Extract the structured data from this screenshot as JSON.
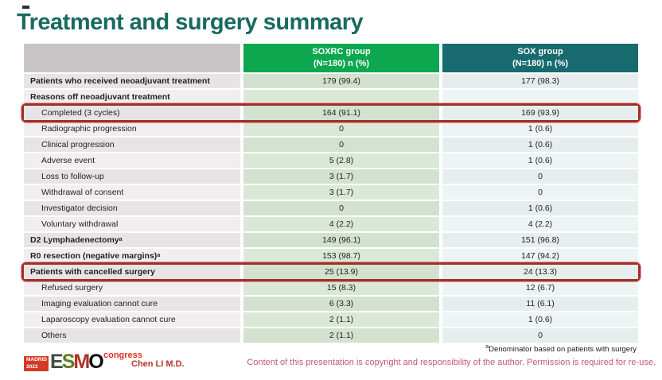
{
  "slide": {
    "title": "Treatment and surgery summary",
    "footnote_sup": "a",
    "footnote": "Denominator based on patients with surgery",
    "copyright": "Content of this presentation is copyright and responsibility of the author.  Permission is required for re-use.",
    "author": "Chen LI M.D."
  },
  "logo": {
    "badge_line1": "MADRID",
    "badge_line2": "2023",
    "congress": "congress",
    "letters": [
      {
        "ch": "E",
        "color": "#3f4a41"
      },
      {
        "ch": "S",
        "color": "#5f7c22"
      },
      {
        "ch": "M",
        "color": "#b03228"
      },
      {
        "ch": "O",
        "color": "#101010"
      }
    ]
  },
  "colors": {
    "title_teal": "#186a5f",
    "soxrc_green": "#0da74f",
    "sox_teal": "#176a6e",
    "highlight_red": "#a1302b",
    "author_red": "#b5342a",
    "copyright_pink": "#c25b6e",
    "congress_red": "#e0301e",
    "badge_red": "#d43a26"
  },
  "table": {
    "columns": [
      {
        "name": "",
        "sub": ""
      },
      {
        "name": "SOXRC group",
        "sub": "(N=180)  n (%)"
      },
      {
        "name": "SOX group",
        "sub": "(N=180)  n (%)"
      }
    ],
    "rows": [
      {
        "label": "Patients who received neoadjuvant treatment",
        "sup": "",
        "soxrc": "179 (99.4)",
        "sox": "177 (98.3)",
        "bold": true,
        "highlight": false
      },
      {
        "label": "Reasons off neoadjuvant treatment",
        "sup": "",
        "soxrc": "",
        "sox": "",
        "bold": true,
        "highlight": false
      },
      {
        "label": "Completed (3 cycles)",
        "sup": "",
        "soxrc": "164 (91.1)",
        "sox": "169 (93.9)",
        "bold": false,
        "highlight": true
      },
      {
        "label": "Radiographic progression",
        "sup": "",
        "soxrc": "0",
        "sox": "1 (0.6)",
        "bold": false,
        "highlight": false
      },
      {
        "label": "Clinical progression",
        "sup": "",
        "soxrc": "0",
        "sox": "1 (0.6)",
        "bold": false,
        "highlight": false
      },
      {
        "label": "Adverse event",
        "sup": "",
        "soxrc": "5 (2.8)",
        "sox": "1 (0.6)",
        "bold": false,
        "highlight": false
      },
      {
        "label": "Loss to follow-up",
        "sup": "",
        "soxrc": "3 (1.7)",
        "sox": "0",
        "bold": false,
        "highlight": false
      },
      {
        "label": "Withdrawal of consent",
        "sup": "",
        "soxrc": "3 (1.7)",
        "sox": "0",
        "bold": false,
        "highlight": false
      },
      {
        "label": "Investigator decision",
        "sup": "",
        "soxrc": "0",
        "sox": "1 (0.6)",
        "bold": false,
        "highlight": false
      },
      {
        "label": "Voluntary withdrawal",
        "sup": "",
        "soxrc": "4 (2.2)",
        "sox": "4 (2.2)",
        "bold": false,
        "highlight": false
      },
      {
        "label": "D2 Lymphadenectomy",
        "sup": "a",
        "soxrc": "149 (96.1)",
        "sox": "151 (96.8)",
        "bold": true,
        "highlight": false
      },
      {
        "label": "R0 resection (negative margins)",
        "sup": "a",
        "soxrc": "153 (98.7)",
        "sox": "147 (94.2)",
        "bold": true,
        "highlight": false
      },
      {
        "label": "Patients with cancelled surgery",
        "sup": "",
        "soxrc": "25 (13.9)",
        "sox": "24 (13.3)",
        "bold": true,
        "highlight": true
      },
      {
        "label": "Refused surgery",
        "sup": "",
        "soxrc": "15 (8.3)",
        "sox": "12 (6.7)",
        "bold": false,
        "highlight": false
      },
      {
        "label": "Imaging evaluation cannot cure",
        "sup": "",
        "soxrc": "6 (3.3)",
        "sox": "11 (6.1)",
        "bold": false,
        "highlight": false
      },
      {
        "label": "Laparoscopy evaluation cannot cure",
        "sup": "",
        "soxrc": "2 (1.1)",
        "sox": "1 (0.6)",
        "bold": false,
        "highlight": false
      },
      {
        "label": "Others",
        "sup": "",
        "soxrc": "2 (1.1)",
        "sox": "0",
        "bold": false,
        "highlight": false
      }
    ]
  }
}
